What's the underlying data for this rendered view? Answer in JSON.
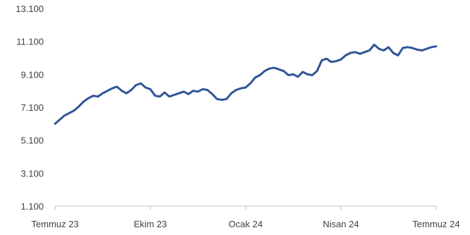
{
  "chart_data": {
    "type": "line",
    "title": "",
    "xlabel": "",
    "ylabel": "",
    "ylim": [
      1100,
      13100
    ],
    "y_ticks": [
      1100,
      3100,
      5100,
      7100,
      9100,
      11100,
      13100
    ],
    "y_tick_labels": [
      "1.100",
      "3.100",
      "5.100",
      "7.100",
      "9.100",
      "11.100",
      "13.100"
    ],
    "x_ticks": [
      "Temmuz 23",
      "Ekim 23",
      "Ocak 24",
      "Nisan 24",
      "Temmuz 24"
    ],
    "x_ticks_index": [
      0,
      3,
      6,
      9,
      12
    ],
    "grid": false,
    "legend": "none",
    "line_color": "#2F5597",
    "series": [
      {
        "x": [
          0,
          0.15,
          0.3,
          0.45,
          0.6,
          0.75,
          0.9,
          1.05,
          1.2,
          1.35,
          1.5,
          1.65,
          1.8,
          1.95,
          2.1,
          2.25,
          2.4,
          2.55,
          2.7,
          2.85,
          3.0,
          3.15,
          3.3,
          3.45,
          3.6,
          3.75,
          3.9,
          4.05,
          4.2,
          4.35,
          4.5,
          4.65,
          4.8,
          4.95,
          5.1,
          5.25,
          5.4,
          5.55,
          5.7,
          5.85,
          6.0,
          6.15,
          6.3,
          6.45,
          6.6,
          6.75,
          6.9,
          7.05,
          7.2,
          7.35,
          7.5,
          7.65,
          7.8,
          7.95,
          8.1,
          8.25,
          8.4,
          8.55,
          8.7,
          8.85,
          9.0,
          9.15,
          9.3,
          9.45,
          9.6,
          9.75,
          9.9,
          10.05,
          10.2,
          10.35,
          10.5,
          10.65,
          10.8,
          10.95,
          11.1,
          11.25,
          11.4,
          11.55,
          11.7,
          11.85,
          12.0
        ],
        "values": [
          6100,
          6350,
          6600,
          6750,
          6900,
          7150,
          7450,
          7650,
          7800,
          7750,
          7950,
          8100,
          8250,
          8350,
          8100,
          7950,
          8150,
          8450,
          8550,
          8300,
          8200,
          7800,
          7750,
          8000,
          7750,
          7850,
          7950,
          8050,
          7900,
          8100,
          8050,
          8200,
          8150,
          7900,
          7600,
          7550,
          7600,
          7950,
          8150,
          8250,
          8300,
          8550,
          8900,
          9050,
          9300,
          9450,
          9500,
          9400,
          9300,
          9050,
          9100,
          8950,
          9250,
          9100,
          9050,
          9300,
          9950,
          10050,
          9850,
          9900,
          10000,
          10250,
          10400,
          10450,
          10350,
          10450,
          10550,
          10900,
          10650,
          10550,
          10750,
          10400,
          10250,
          10700,
          10750,
          10700,
          10600,
          10550,
          10650,
          10750,
          10800
        ]
      }
    ]
  }
}
